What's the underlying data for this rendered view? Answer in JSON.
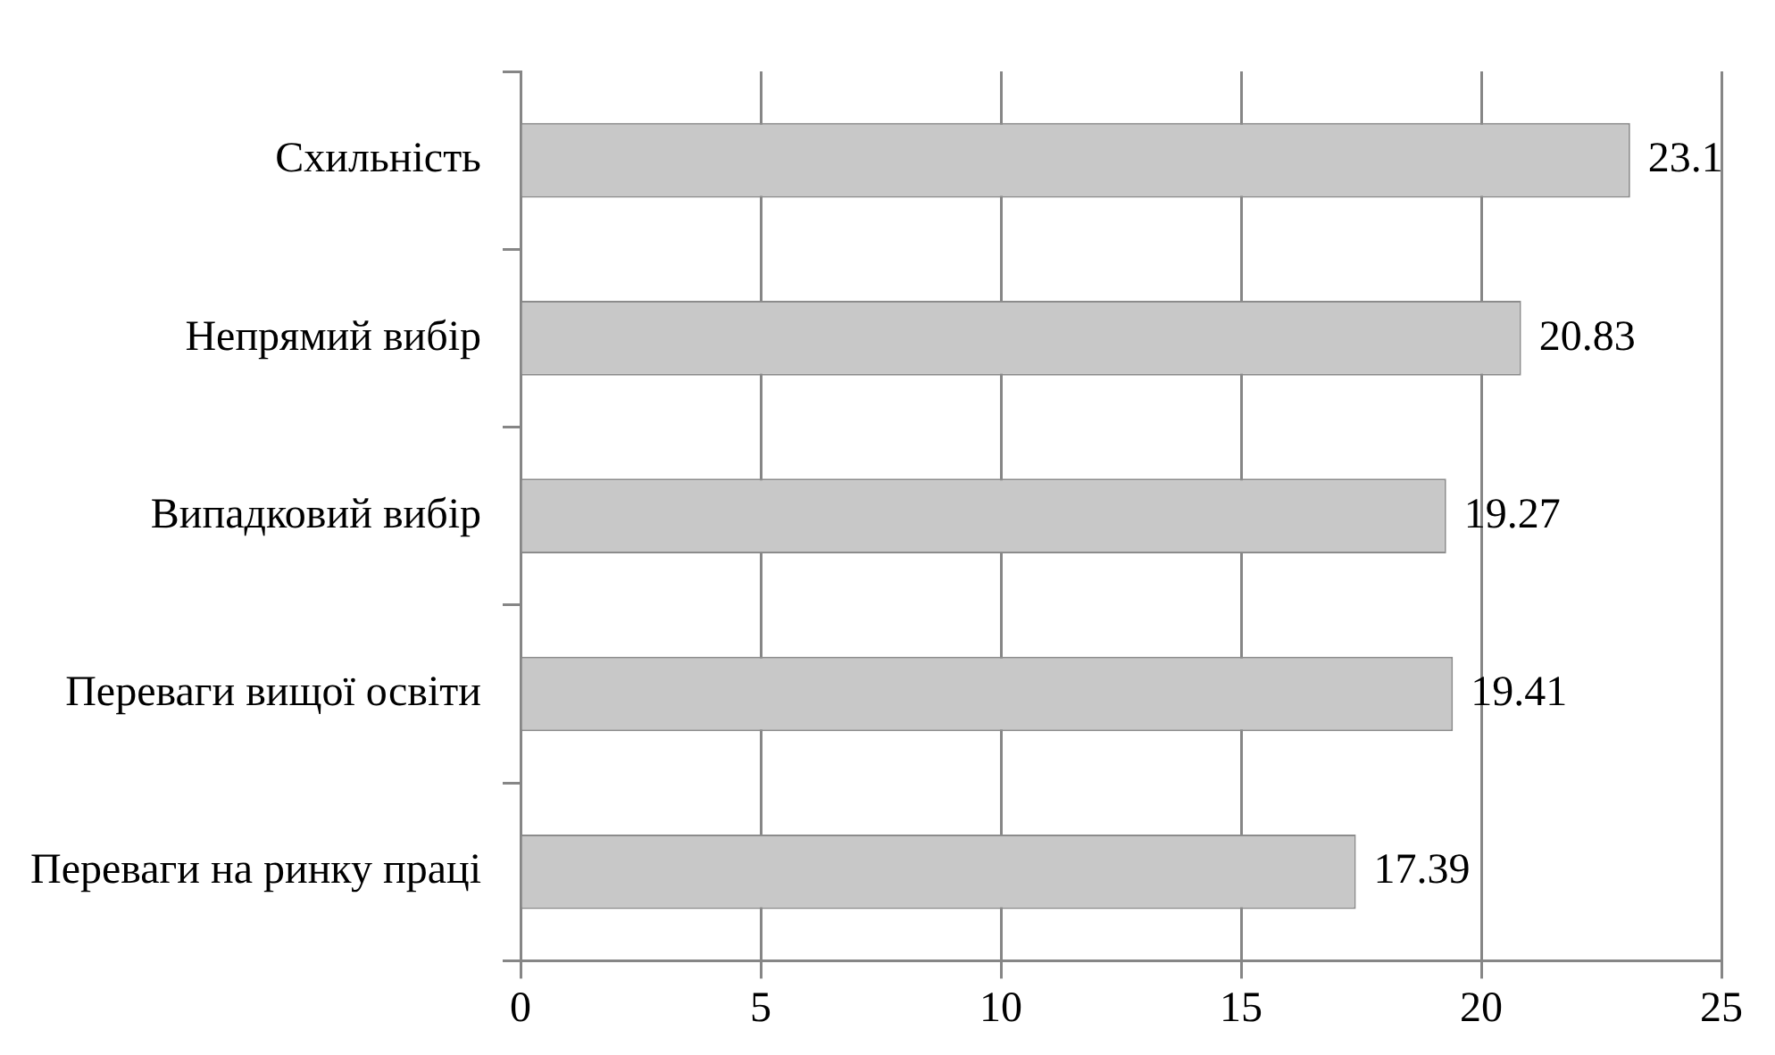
{
  "chart_data": {
    "type": "bar",
    "orientation": "horizontal",
    "categories": [
      "Схильність",
      "Непрямий вибір",
      "Випадковий вибір",
      "Переваги вищої освіти",
      "Переваги на ринку праці"
    ],
    "values": [
      23.1,
      20.83,
      19.27,
      19.41,
      17.39
    ],
    "color": "#c8c8c8",
    "xlim": [
      0,
      25
    ],
    "xticks": [
      0,
      5,
      10,
      15,
      20,
      25
    ],
    "grid": "x",
    "legend": false,
    "data_labels": true
  }
}
